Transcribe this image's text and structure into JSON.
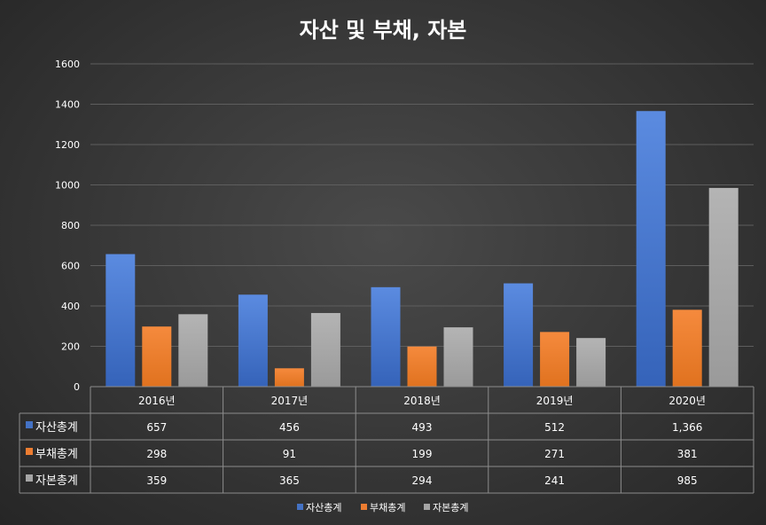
{
  "chart_data": {
    "type": "bar",
    "title": "자산 및 부채, 자본",
    "categories": [
      "2016년",
      "2017년",
      "2018년",
      "2019년",
      "2020년"
    ],
    "series": [
      {
        "name": "자산총계",
        "values": [
          657,
          456,
          493,
          512,
          1366
        ],
        "labels": [
          "657",
          "456",
          "493",
          "512",
          "1,366"
        ],
        "color": "#4472c4"
      },
      {
        "name": "부채총계",
        "values": [
          298,
          91,
          199,
          271,
          381
        ],
        "labels": [
          "298",
          "91",
          "199",
          "271",
          "381"
        ],
        "color": "#ed7d31"
      },
      {
        "name": "자본총계",
        "values": [
          359,
          365,
          294,
          241,
          985
        ],
        "labels": [
          "359",
          "365",
          "294",
          "241",
          "985"
        ],
        "color": "#a5a5a5"
      }
    ],
    "ylim": [
      0,
      1600
    ],
    "yticks": [
      0,
      200,
      400,
      600,
      800,
      1000,
      1200,
      1400,
      1600
    ],
    "grid": true,
    "legend_position": "bottom",
    "data_table": true
  }
}
